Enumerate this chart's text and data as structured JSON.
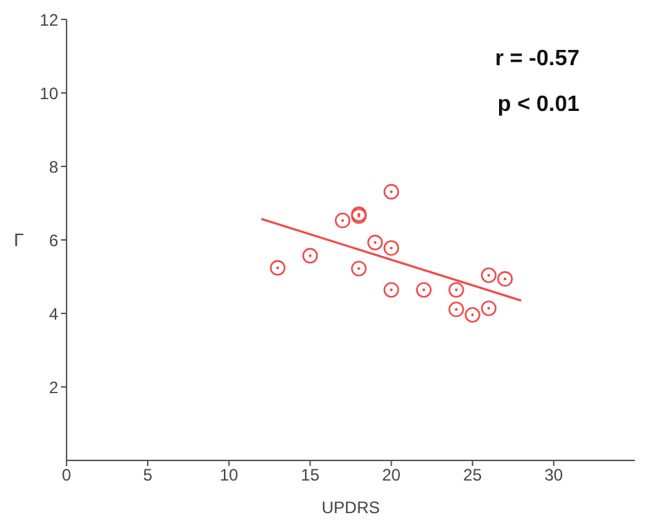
{
  "chart_data": {
    "type": "scatter",
    "xlabel": "UPDRS",
    "ylabel": "Γ",
    "xlim": [
      0,
      35
    ],
    "ylim": [
      0,
      12
    ],
    "xticks": [
      0,
      5,
      10,
      15,
      20,
      25,
      30
    ],
    "yticks": [
      2,
      4,
      6,
      8,
      10,
      12
    ],
    "grid": false,
    "marker": "circle",
    "annotations": [
      "r = -0.57",
      "p < 0.01"
    ],
    "series": [
      {
        "color": "#f04a4a",
        "x": [
          13,
          15,
          17,
          18,
          18,
          18,
          19,
          20,
          20,
          20,
          22,
          24,
          24,
          25,
          26,
          26,
          27
        ],
        "values": [
          5.24,
          5.57,
          6.53,
          6.7,
          6.65,
          5.22,
          5.93,
          7.31,
          5.78,
          4.64,
          4.64,
          4.64,
          4.11,
          3.96,
          5.04,
          4.14,
          4.94
        ]
      },
      {
        "type": "line",
        "color": "#f04a4a",
        "x": [
          12,
          28
        ],
        "values": [
          6.57,
          4.35
        ],
        "marker": "none"
      }
    ]
  }
}
